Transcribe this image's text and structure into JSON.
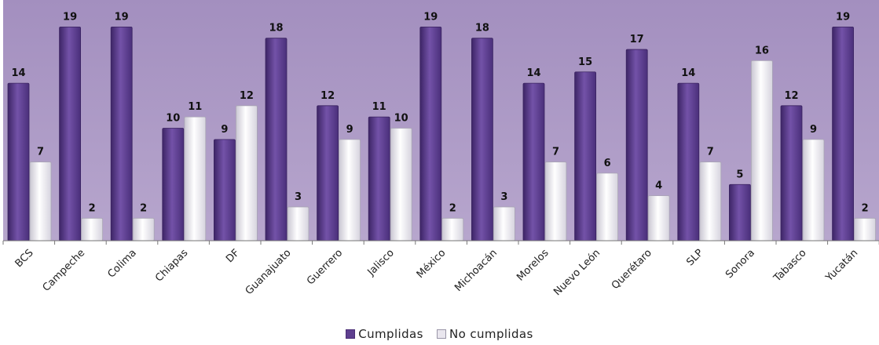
{
  "chart_data": {
    "type": "bar",
    "categories": [
      "BCS",
      "Campeche",
      "Colima",
      "Chiapas",
      "DF",
      "Guanajuato",
      "Guerrero",
      "Jalisco",
      "México",
      "Michoacán",
      "Morelos",
      "Nuevo León",
      "Querétaro",
      "SLP",
      "Sonora",
      "Tabasco",
      "Yucatán"
    ],
    "series": [
      {
        "name": "Cumplidas",
        "values": [
          14,
          19,
          19,
          10,
          9,
          18,
          12,
          11,
          19,
          18,
          14,
          15,
          17,
          14,
          5,
          12,
          19
        ],
        "color": "#5e3f8f"
      },
      {
        "name": "No cumplidas",
        "values": [
          7,
          2,
          2,
          11,
          12,
          3,
          9,
          10,
          2,
          3,
          7,
          6,
          4,
          7,
          16,
          9,
          2
        ],
        "color": "#eceaf0"
      }
    ],
    "ylim": [
      0,
      20
    ],
    "grid": false,
    "legend_position": "bottom",
    "plot_background": "#a996c2"
  }
}
